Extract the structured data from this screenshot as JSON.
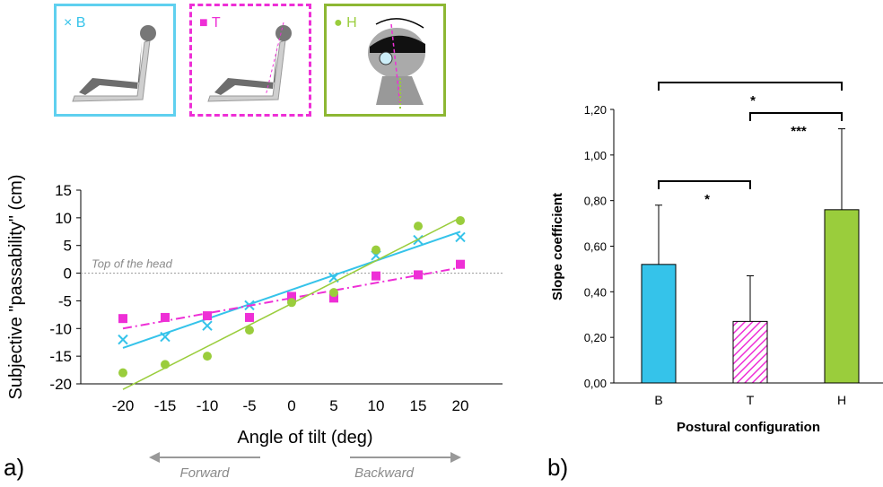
{
  "colors": {
    "B": "#35c3ea",
    "T": "#ee2fd6",
    "H": "#9acd3c"
  },
  "legend_boxes": [
    {
      "key": "B",
      "marker": "×",
      "label": "B"
    },
    {
      "key": "T",
      "marker": "■",
      "label": "T"
    },
    {
      "key": "H",
      "marker": "●",
      "label": "H"
    }
  ],
  "panel_a_caption": "a)",
  "panel_b_caption": "b)",
  "arrows": {
    "forward": "Forward",
    "backward": "Backward"
  },
  "chart_data": [
    {
      "type": "scatter",
      "xlabel": "Angle of tilt (deg)",
      "ylabel": "Subjective \"passability\" (cm)",
      "xlim": [
        -25,
        25
      ],
      "ylim": [
        -20,
        15
      ],
      "x_ticks": [
        -20,
        -15,
        -10,
        -5,
        0,
        5,
        10,
        15,
        20
      ],
      "y_ticks": [
        15,
        10,
        5,
        0,
        -5,
        -10,
        -15,
        -20
      ],
      "reference_line": {
        "y": 0,
        "label": "Top of the head"
      },
      "series": [
        {
          "key": "B",
          "x": [
            -20,
            -15,
            -10,
            -5,
            5,
            10,
            15,
            20
          ],
          "y": [
            -12,
            -11.5,
            -9.5,
            -5.8,
            -0.8,
            3.2,
            6,
            6.5
          ],
          "fit": {
            "x": [
              -20,
              20
            ],
            "y": [
              -13.5,
              7.5
            ]
          }
        },
        {
          "key": "T",
          "x": [
            -20,
            -15,
            -10,
            -5,
            0,
            5,
            10,
            15,
            20
          ],
          "y": [
            -8.2,
            -8,
            -7.7,
            -8,
            -4.2,
            -4.5,
            -0.5,
            -0.3,
            1.6
          ],
          "fit": {
            "x": [
              -20,
              20
            ],
            "y": [
              -10,
              1
            ]
          }
        },
        {
          "key": "H",
          "x": [
            -20,
            -15,
            -10,
            -5,
            0,
            5,
            10,
            15,
            20
          ],
          "y": [
            -18,
            -16.5,
            -15,
            -10.3,
            -5.3,
            -3.5,
            4.2,
            8.5,
            9.5
          ],
          "fit": {
            "x": [
              -20,
              20
            ],
            "y": [
              -21,
              10
            ]
          }
        }
      ]
    },
    {
      "type": "bar",
      "categories": [
        "B",
        "T",
        "H"
      ],
      "values": [
        0.52,
        0.27,
        0.76
      ],
      "errors": [
        0.26,
        0.2,
        0.355
      ],
      "ylabel": "Slope coefficient",
      "xlabel": "Postural configuration",
      "ylim": [
        0,
        1.2
      ],
      "y_ticks": [
        "0,00",
        "0,20",
        "0,40",
        "0,60",
        "0,80",
        "1,00",
        "1,20"
      ],
      "significance": [
        {
          "from": "B",
          "to": "H",
          "label": "*"
        },
        {
          "from": "T",
          "to": "H",
          "label": "***"
        },
        {
          "from": "B",
          "to": "T",
          "label": "*"
        }
      ]
    }
  ]
}
